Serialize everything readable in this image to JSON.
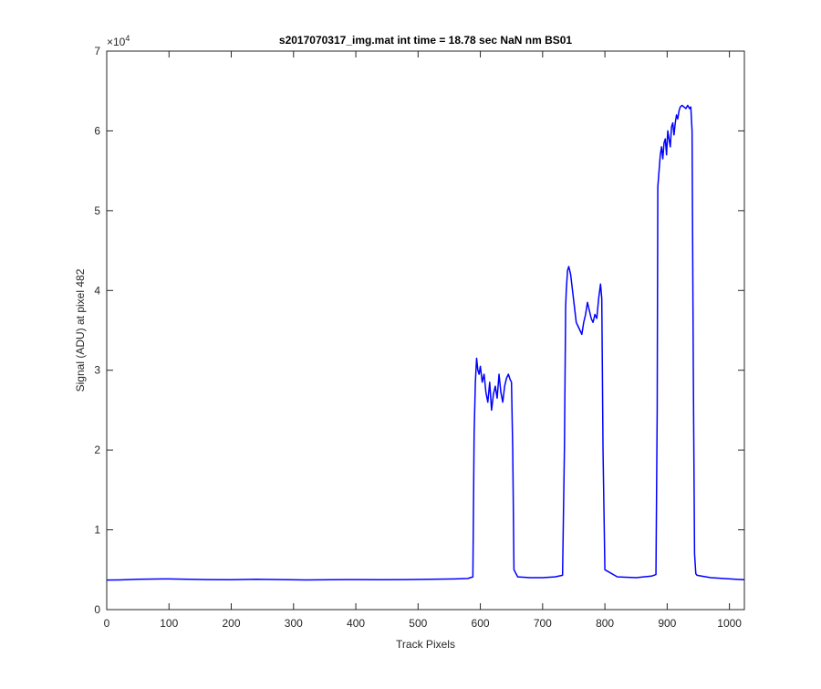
{
  "chart_data": {
    "type": "line",
    "title": "s2017070317_img.mat int time = 18.78 sec  NaN nm BS01",
    "xlabel": "Track Pixels",
    "ylabel": "Signal (ADU) at pixel 482",
    "xlim": [
      0,
      1024
    ],
    "ylim": [
      0,
      70000
    ],
    "x_ticks": [
      0,
      100,
      200,
      300,
      400,
      500,
      600,
      700,
      800,
      900,
      1000
    ],
    "y_ticks": [
      0,
      1,
      2,
      3,
      4,
      5,
      6,
      7
    ],
    "y_tick_labels": [
      "0",
      "1",
      "2",
      "3",
      "4",
      "5",
      "6",
      "7"
    ],
    "y_exponent": "×10",
    "y_exponent_power": "4",
    "grid": false,
    "line_color": "#0000ff",
    "series": [
      {
        "x": [
          0,
          20,
          50,
          90,
          100,
          130,
          160,
          200,
          240,
          280,
          320,
          360,
          400,
          440,
          480,
          520,
          560,
          580,
          588,
          590,
          592,
          594,
          596,
          598,
          600,
          603,
          606,
          609,
          612,
          615,
          618,
          621,
          624,
          627,
          630,
          633,
          636,
          639,
          642,
          645,
          648,
          650,
          652,
          654,
          660,
          680,
          700,
          720,
          732,
          735,
          737,
          738,
          740,
          742,
          745,
          748,
          751,
          754,
          757,
          760,
          763,
          766,
          769,
          772,
          775,
          778,
          781,
          784,
          787,
          790,
          793,
          795,
          797,
          800,
          820,
          850,
          875,
          882,
          884,
          885,
          887,
          889,
          891,
          893,
          895,
          897,
          899,
          901,
          903,
          905,
          907,
          909,
          911,
          913,
          915,
          917,
          919,
          921,
          924,
          927,
          930,
          933,
          936,
          938,
          940,
          942,
          944,
          946,
          948,
          955,
          970,
          990,
          1010,
          1024
        ],
        "y": [
          3700,
          3720,
          3800,
          3850,
          3850,
          3800,
          3760,
          3750,
          3800,
          3760,
          3720,
          3750,
          3760,
          3750,
          3760,
          3800,
          3850,
          3900,
          4100,
          22000,
          28500,
          31500,
          30000,
          29500,
          30500,
          28500,
          29500,
          27200,
          26000,
          28500,
          25000,
          27000,
          28000,
          26500,
          29500,
          27200,
          26000,
          28000,
          29000,
          29500,
          28800,
          28500,
          20000,
          5000,
          4100,
          4000,
          4000,
          4100,
          4300,
          20000,
          38000,
          40000,
          42500,
          43000,
          42000,
          40000,
          38000,
          36000,
          35500,
          35000,
          34500,
          36000,
          37000,
          38500,
          37500,
          36500,
          36000,
          37000,
          36500,
          39000,
          40800,
          39000,
          20000,
          5000,
          4100,
          4000,
          4200,
          4400,
          25000,
          53000,
          55000,
          57000,
          58000,
          56500,
          58500,
          59000,
          57000,
          60000,
          59000,
          58000,
          60500,
          61000,
          59500,
          61000,
          62000,
          61500,
          62500,
          63000,
          63200,
          63000,
          62800,
          63200,
          62800,
          63000,
          60000,
          30000,
          7000,
          4500,
          4300,
          4200,
          4000,
          3900,
          3800,
          3750
        ]
      }
    ]
  }
}
